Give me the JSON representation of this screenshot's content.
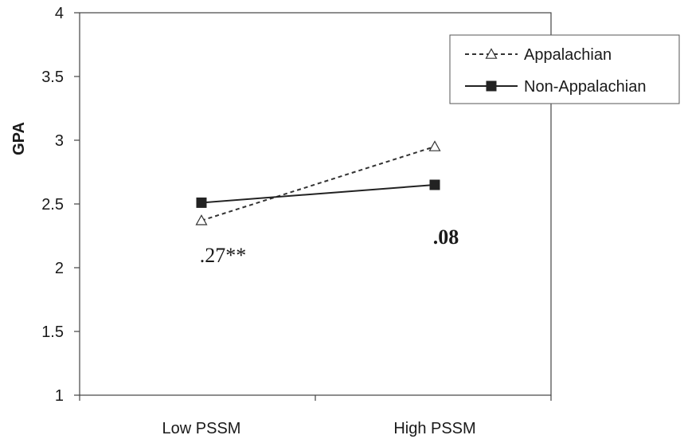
{
  "chart_data": {
    "type": "line",
    "title": "",
    "xlabel": "",
    "ylabel": "GPA",
    "ylim": [
      1,
      4
    ],
    "yticks": [
      "1",
      "1.5",
      "2",
      "2.5",
      "3",
      "3.5",
      "4"
    ],
    "categories": [
      "Low PSSM",
      "High PSSM"
    ],
    "series": [
      {
        "name": "Appalachian",
        "values": [
          2.37,
          2.95
        ],
        "style": "dashed",
        "marker": "open-triangle",
        "color": "#333333"
      },
      {
        "name": "Non-Appalachian",
        "values": [
          2.51,
          2.65
        ],
        "style": "solid",
        "marker": "filled-square",
        "color": "#222222"
      }
    ],
    "annotations": [
      {
        "text": ".27**",
        "category": "Low PSSM",
        "bold": false
      },
      {
        "text": ".08",
        "category": "High PSSM",
        "bold": true
      }
    ],
    "grid": false,
    "legend": "top-right"
  }
}
